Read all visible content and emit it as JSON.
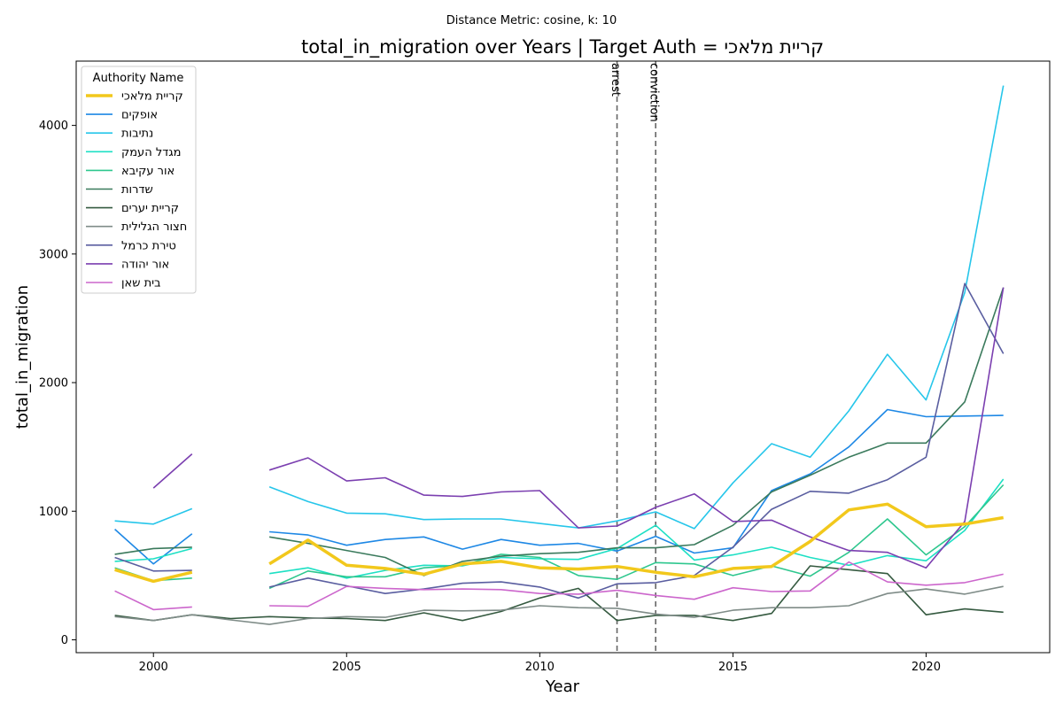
{
  "chart_data": {
    "type": "line",
    "suptitle": "Distance Metric: cosine, k: 10",
    "title": "total_in_migration over Years | Target Auth = קריית מלאכי",
    "xlabel": "Year",
    "ylabel": "total_in_migration",
    "xlim": [
      1998,
      2023.2
    ],
    "ylim": [
      -100,
      4500
    ],
    "xticks": [
      2000,
      2005,
      2010,
      2015,
      2020
    ],
    "yticks": [
      0,
      1000,
      2000,
      3000,
      4000
    ],
    "legend_title": "Authority Name",
    "legend_position": "top-left",
    "grid": false,
    "x": [
      1999,
      2000,
      2001,
      2002,
      2003,
      2004,
      2005,
      2006,
      2007,
      2008,
      2009,
      2010,
      2011,
      2012,
      2013,
      2014,
      2015,
      2016,
      2017,
      2018,
      2019,
      2020,
      2021,
      2022
    ],
    "vlines": [
      {
        "x": 2012,
        "label": "arrest"
      },
      {
        "x": 2013,
        "label": "conviction"
      }
    ],
    "series": [
      {
        "name": "קריית מלאכי",
        "color": "#f2c81c",
        "width": 3.5,
        "values": [
          545,
          455,
          525,
          null,
          590,
          775,
          580,
          555,
          510,
          590,
          610,
          560,
          550,
          570,
          525,
          490,
          555,
          570,
          765,
          1010,
          1055,
          880,
          900,
          950
        ]
      },
      {
        "name": "אופקים",
        "color": "#1e88e5",
        "width": 1.6,
        "values": [
          860,
          590,
          825,
          null,
          840,
          815,
          735,
          780,
          800,
          705,
          780,
          735,
          750,
          690,
          805,
          675,
          715,
          1160,
          1290,
          1500,
          1790,
          1735,
          1740,
          1745
        ]
      },
      {
        "name": "נתיבות",
        "color": "#26c6ea",
        "width": 1.6,
        "values": [
          925,
          900,
          1020,
          null,
          1190,
          1075,
          985,
          980,
          935,
          940,
          940,
          905,
          870,
          925,
          995,
          865,
          1220,
          1525,
          1420,
          1780,
          2220,
          1865,
          2700,
          4310
        ]
      },
      {
        "name": "מגדל העמק",
        "color": "#1de0c4",
        "width": 1.6,
        "values": [
          610,
          630,
          710,
          null,
          515,
          560,
          480,
          540,
          580,
          575,
          640,
          630,
          625,
          710,
          890,
          620,
          660,
          720,
          640,
          580,
          655,
          615,
          850,
          1250
        ]
      },
      {
        "name": "אור עקיבא",
        "color": "#2ec78e",
        "width": 1.6,
        "values": [
          560,
          460,
          480,
          null,
          400,
          535,
          490,
          490,
          560,
          580,
          665,
          640,
          500,
          470,
          600,
          590,
          500,
          575,
          495,
          680,
          940,
          660,
          880,
          1205
        ]
      },
      {
        "name": "שדרות",
        "color": "#3a7a5c",
        "width": 1.6,
        "values": [
          665,
          710,
          720,
          null,
          800,
          750,
          695,
          640,
          500,
          610,
          650,
          670,
          680,
          715,
          715,
          740,
          890,
          1150,
          1280,
          1420,
          1530,
          1530,
          1850,
          2740
        ]
      },
      {
        "name": "קריית יערים",
        "color": "#355a40",
        "width": 1.6,
        "values": [
          190,
          150,
          195,
          165,
          180,
          170,
          165,
          150,
          210,
          150,
          220,
          325,
          400,
          150,
          190,
          190,
          150,
          205,
          575,
          545,
          515,
          195,
          240,
          215
        ]
      },
      {
        "name": "חצור הגלילית",
        "color": "#7f8c88",
        "width": 1.6,
        "values": [
          180,
          150,
          195,
          155,
          120,
          165,
          180,
          175,
          230,
          225,
          230,
          265,
          250,
          245,
          200,
          175,
          230,
          250,
          250,
          265,
          360,
          395,
          355,
          415
        ]
      },
      {
        "name": "טירת כרמל",
        "color": "#5a5ea0",
        "width": 1.6,
        "values": [
          640,
          535,
          540,
          null,
          410,
          480,
          420,
          360,
          395,
          440,
          450,
          410,
          325,
          435,
          445,
          500,
          720,
          1015,
          1155,
          1140,
          1245,
          1420,
          2770,
          2225
        ]
      },
      {
        "name": "אור יהודה",
        "color": "#7b3fb0",
        "width": 1.6,
        "values": [
          null,
          1180,
          1445,
          null,
          1320,
          1415,
          1235,
          1260,
          1125,
          1115,
          1150,
          1160,
          870,
          885,
          1030,
          1135,
          920,
          930,
          800,
          695,
          680,
          560,
          920,
          2740
        ]
      },
      {
        "name": "בית שאן",
        "color": "#cc66cc",
        "width": 1.6,
        "values": [
          380,
          235,
          255,
          null,
          265,
          260,
          415,
          400,
          390,
          395,
          390,
          360,
          355,
          385,
          345,
          315,
          405,
          375,
          380,
          605,
          450,
          425,
          445,
          510
        ]
      }
    ]
  }
}
